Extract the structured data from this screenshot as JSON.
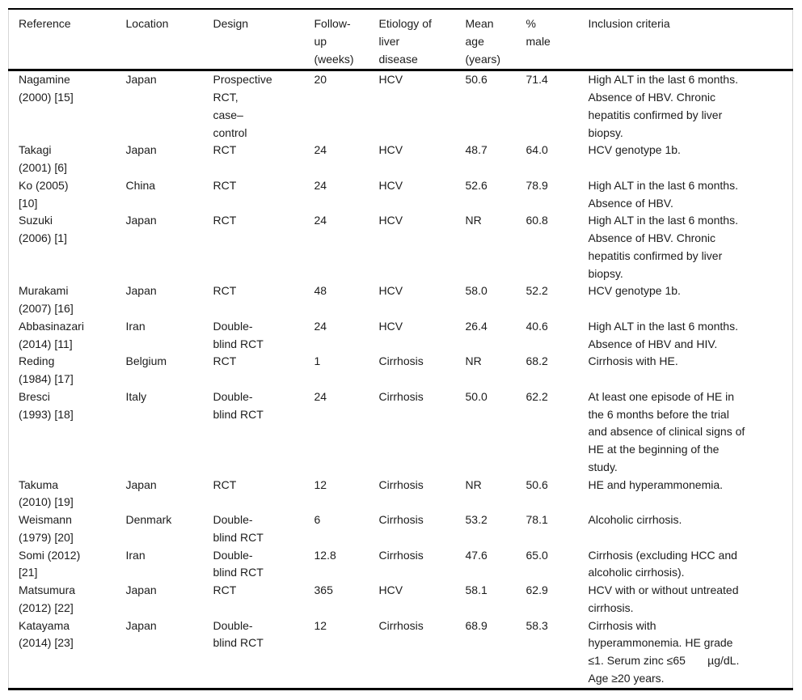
{
  "colors": {
    "rule_color": "#000000",
    "frame_color": "#d6d6d6",
    "text_color": "#1c1c1c",
    "background": "#ffffff"
  },
  "table": {
    "columns": [
      {
        "key": "reference",
        "label": "Reference"
      },
      {
        "key": "location",
        "label": "Location"
      },
      {
        "key": "design",
        "label": "Design"
      },
      {
        "key": "follow_up",
        "label": "Follow-\nup\n(weeks)"
      },
      {
        "key": "etiology",
        "label": "Etiology of\nliver\ndisease"
      },
      {
        "key": "mean_age",
        "label": "Mean\nage\n(years)"
      },
      {
        "key": "pct_male",
        "label": "%\nmale"
      },
      {
        "key": "inclusion",
        "label": "Inclusion criteria"
      }
    ],
    "rows": [
      {
        "reference": "Nagamine\n(2000) [15]",
        "location": "Japan",
        "design": "Prospective\nRCT,\ncase–\ncontrol",
        "follow_up": "20",
        "etiology": "HCV",
        "mean_age": "50.6",
        "pct_male": "71.4",
        "inclusion": "High ALT in the last 6 months.\nAbsence of HBV. Chronic\nhepatitis confirmed by liver\nbiopsy."
      },
      {
        "reference": "Takagi\n(2001) [6]",
        "location": "Japan",
        "design": "RCT",
        "follow_up": "24",
        "etiology": "HCV",
        "mean_age": "48.7",
        "pct_male": "64.0",
        "inclusion": "HCV genotype 1b."
      },
      {
        "reference": "Ko (2005)\n[10]",
        "location": "China",
        "design": "RCT",
        "follow_up": "24",
        "etiology": "HCV",
        "mean_age": "52.6",
        "pct_male": "78.9",
        "inclusion": "High ALT in the last 6 months.\nAbsence of HBV."
      },
      {
        "reference": "Suzuki\n(2006) [1]",
        "location": "Japan",
        "design": "RCT",
        "follow_up": "24",
        "etiology": "HCV",
        "mean_age": "NR",
        "pct_male": "60.8",
        "inclusion": "High ALT in the last 6 months.\nAbsence of HBV. Chronic\nhepatitis confirmed by liver\nbiopsy."
      },
      {
        "reference": "Murakami\n(2007) [16]",
        "location": "Japan",
        "design": "RCT",
        "follow_up": "48",
        "etiology": "HCV",
        "mean_age": "58.0",
        "pct_male": "52.2",
        "inclusion": "HCV genotype 1b."
      },
      {
        "reference": "Abbasinazari\n(2014) [11]",
        "location": "Iran",
        "design": "Double-\nblind RCT",
        "follow_up": "24",
        "etiology": "HCV",
        "mean_age": "26.4",
        "pct_male": "40.6",
        "inclusion": "High ALT in the last 6 months.\nAbsence of HBV and HIV."
      },
      {
        "reference": "Reding\n(1984) [17]",
        "location": "Belgium",
        "design": "RCT",
        "follow_up": "1",
        "etiology": "Cirrhosis",
        "mean_age": "NR",
        "pct_male": "68.2",
        "inclusion": "Cirrhosis with HE."
      },
      {
        "reference": "Bresci\n(1993) [18]",
        "location": "Italy",
        "design": "Double-\nblind RCT",
        "follow_up": "24",
        "etiology": "Cirrhosis",
        "mean_age": "50.0",
        "pct_male": "62.2",
        "inclusion": "At least one episode of HE in\nthe 6 months before the trial\nand absence of clinical signs of\nHE at the beginning of the\nstudy."
      },
      {
        "reference": "Takuma\n(2010) [19]",
        "location": "Japan",
        "design": "RCT",
        "follow_up": "12",
        "etiology": "Cirrhosis",
        "mean_age": "NR",
        "pct_male": "50.6",
        "inclusion": "HE and hyperammonemia."
      },
      {
        "reference": "Weismann\n(1979) [20]",
        "location": "Denmark",
        "design": "Double-\nblind RCT",
        "follow_up": "6",
        "etiology": "Cirrhosis",
        "mean_age": "53.2",
        "pct_male": "78.1",
        "inclusion": "Alcoholic cirrhosis."
      },
      {
        "reference": "Somi (2012)\n[21]",
        "location": "Iran",
        "design": "Double-\nblind RCT",
        "follow_up": "12.8",
        "etiology": "Cirrhosis",
        "mean_age": "47.6",
        "pct_male": "65.0",
        "inclusion": "Cirrhosis (excluding HCC and\nalcoholic cirrhosis)."
      },
      {
        "reference": "Matsumura\n(2012) [22]",
        "location": "Japan",
        "design": "RCT",
        "follow_up": "365",
        "etiology": "HCV",
        "mean_age": "58.1",
        "pct_male": "62.9",
        "inclusion": "HCV with or without untreated\ncirrhosis."
      },
      {
        "reference": "Katayama\n(2014) [23]",
        "location": "Japan",
        "design": "Double-\nblind RCT",
        "follow_up": "12",
        "etiology": "Cirrhosis",
        "mean_age": "68.9",
        "pct_male": "58.3",
        "inclusion": "Cirrhosis with\nhyperammonemia. HE grade\n≤1. Serum zinc ≤65       µg/dL.\nAge ≥20 years."
      }
    ]
  }
}
